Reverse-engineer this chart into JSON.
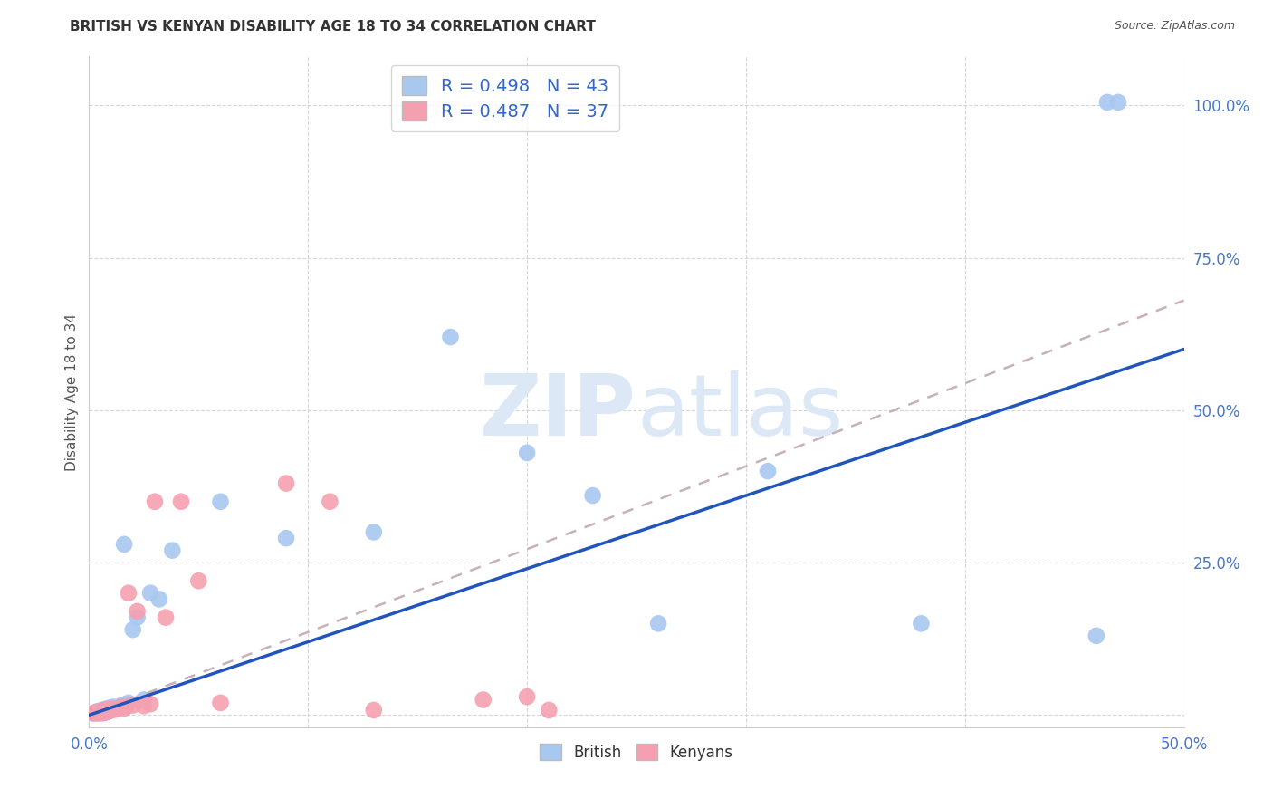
{
  "title": "BRITISH VS KENYAN DISABILITY AGE 18 TO 34 CORRELATION CHART",
  "source": "Source: ZipAtlas.com",
  "ylabel": "Disability Age 18 to 34",
  "xlim": [
    0.0,
    0.5
  ],
  "ylim": [
    -0.02,
    1.08
  ],
  "xticks": [
    0.0,
    0.1,
    0.2,
    0.3,
    0.4,
    0.5
  ],
  "yticks": [
    0.0,
    0.25,
    0.5,
    0.75,
    1.0
  ],
  "xticklabels": [
    "0.0%",
    "",
    "",
    "",
    "",
    "50.0%"
  ],
  "yticklabels": [
    "",
    "25.0%",
    "50.0%",
    "75.0%",
    "100.0%"
  ],
  "british_R": 0.498,
  "british_N": 43,
  "kenyan_R": 0.487,
  "kenyan_N": 37,
  "british_color": "#a8c8f0",
  "kenyan_color": "#f5a0b0",
  "british_line_color": "#2255bb",
  "kenyan_line_color": "#c8b0b8",
  "watermark_color": "#dce8f5",
  "background_color": "#ffffff",
  "grid_color": "#cccccc",
  "british_line_y0": 0.0,
  "british_line_y1": 0.6,
  "kenyan_line_y0": 0.0,
  "kenyan_line_y1": 0.68,
  "british_x": [
    0.002,
    0.003,
    0.004,
    0.004,
    0.005,
    0.005,
    0.006,
    0.006,
    0.007,
    0.007,
    0.008,
    0.008,
    0.009,
    0.009,
    0.01,
    0.01,
    0.011,
    0.011,
    0.012,
    0.013,
    0.014,
    0.015,
    0.016,
    0.017,
    0.018,
    0.02,
    0.022,
    0.025,
    0.028,
    0.032,
    0.038,
    0.06,
    0.09,
    0.13,
    0.165,
    0.2,
    0.23,
    0.26,
    0.31,
    0.38,
    0.46,
    0.465,
    0.47
  ],
  "british_y": [
    0.003,
    0.005,
    0.003,
    0.006,
    0.004,
    0.007,
    0.005,
    0.008,
    0.004,
    0.009,
    0.006,
    0.01,
    0.007,
    0.011,
    0.008,
    0.012,
    0.009,
    0.013,
    0.01,
    0.012,
    0.014,
    0.016,
    0.28,
    0.018,
    0.02,
    0.14,
    0.16,
    0.025,
    0.2,
    0.19,
    0.27,
    0.35,
    0.29,
    0.3,
    0.62,
    0.43,
    0.36,
    0.15,
    0.4,
    0.15,
    0.13,
    1.005,
    1.005
  ],
  "kenyan_x": [
    0.002,
    0.003,
    0.004,
    0.004,
    0.005,
    0.005,
    0.006,
    0.006,
    0.007,
    0.007,
    0.008,
    0.008,
    0.009,
    0.01,
    0.011,
    0.012,
    0.013,
    0.014,
    0.015,
    0.016,
    0.017,
    0.018,
    0.02,
    0.022,
    0.025,
    0.028,
    0.03,
    0.035,
    0.042,
    0.05,
    0.06,
    0.09,
    0.11,
    0.13,
    0.18,
    0.2,
    0.21
  ],
  "kenyan_y": [
    0.003,
    0.004,
    0.003,
    0.005,
    0.004,
    0.006,
    0.003,
    0.007,
    0.004,
    0.008,
    0.005,
    0.009,
    0.006,
    0.008,
    0.01,
    0.009,
    0.011,
    0.012,
    0.013,
    0.011,
    0.014,
    0.2,
    0.016,
    0.17,
    0.015,
    0.018,
    0.35,
    0.16,
    0.35,
    0.22,
    0.02,
    0.38,
    0.35,
    0.008,
    0.025,
    0.03,
    0.008
  ]
}
